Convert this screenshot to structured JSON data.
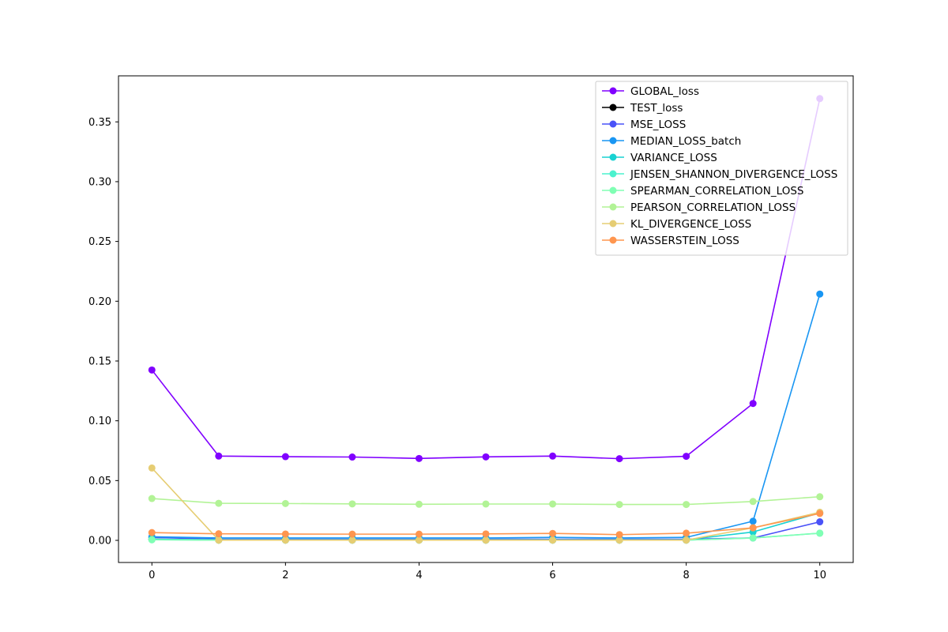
{
  "chart_data": {
    "type": "line",
    "title": "",
    "xlabel": "",
    "ylabel": "",
    "xlim": [
      -0.5,
      10.5
    ],
    "ylim": [
      -0.0185,
      0.3885
    ],
    "xticks": [
      0,
      2,
      4,
      6,
      8,
      10
    ],
    "xtick_labels": [
      "0",
      "2",
      "4",
      "6",
      "8",
      "10"
    ],
    "yticks": [
      0.0,
      0.05,
      0.1,
      0.15,
      0.2,
      0.25,
      0.3,
      0.35
    ],
    "ytick_labels": [
      "0.00",
      "0.05",
      "0.10",
      "0.15",
      "0.20",
      "0.25",
      "0.30",
      "0.35"
    ],
    "grid": false,
    "legend_position": "top-right",
    "x": [
      0,
      1,
      2,
      3,
      4,
      5,
      6,
      7,
      8,
      9,
      10
    ],
    "series": [
      {
        "name": "GLOBAL_loss",
        "color": "#8000ff",
        "values": [
          0.1425,
          0.0705,
          0.07,
          0.0697,
          0.0685,
          0.0698,
          0.0705,
          0.0683,
          0.0703,
          0.1145,
          0.3695
        ]
      },
      {
        "name": "TEST_loss",
        "color": "#000000",
        "values": [
          0.001,
          0.0002,
          0.0002,
          0.0002,
          0.0002,
          0.0002,
          0.0002,
          0.0002,
          0.0002,
          null,
          null
        ]
      },
      {
        "name": "MSE_LOSS",
        "color": "#4a52f8",
        "values": [
          0.0025,
          0.001,
          0.001,
          0.001,
          0.001,
          0.001,
          0.001,
          0.001,
          0.001,
          0.002,
          0.0155
        ]
      },
      {
        "name": "MEDIAN_LOSS_batch",
        "color": "#1996f3",
        "values": [
          0.003,
          0.002,
          0.002,
          0.002,
          0.002,
          0.002,
          0.0025,
          0.002,
          0.0025,
          0.016,
          0.206
        ]
      },
      {
        "name": "VARIANCE_LOSS",
        "color": "#19d2d2",
        "values": [
          0.001,
          0.0005,
          0.0005,
          0.0005,
          0.0005,
          0.0005,
          0.0005,
          0.0005,
          0.0005,
          0.007,
          0.023
        ]
      },
      {
        "name": "JENSEN_SHANNON_DIVERGENCE_LOSS",
        "color": "#4cf2ce",
        "values": [
          0.0005,
          0.0002,
          0.0002,
          0.0002,
          0.0002,
          0.0002,
          0.0002,
          0.0002,
          0.0002,
          0.002,
          0.006
        ]
      },
      {
        "name": "SPEARMAN_CORRELATION_LOSS",
        "color": "#80ffb4",
        "values": [
          0.0005,
          0.0002,
          0.0002,
          0.0002,
          0.0002,
          0.0002,
          0.0002,
          0.0002,
          0.0002,
          0.002,
          0.006
        ]
      },
      {
        "name": "PEARSON_CORRELATION_LOSS",
        "color": "#b2f396",
        "values": [
          0.035,
          0.031,
          0.0308,
          0.0305,
          0.0302,
          0.0304,
          0.0304,
          0.03,
          0.03,
          0.0325,
          0.0365
        ]
      },
      {
        "name": "KL_DIVERGENCE_LOSS",
        "color": "#e6cd73",
        "values": [
          0.0605,
          0.0002,
          0.0002,
          0.0002,
          0.0002,
          0.0002,
          0.0002,
          0.0002,
          0.0002,
          0.0105,
          0.0235
        ]
      },
      {
        "name": "WASSERSTEIN_LOSS",
        "color": "#ff964f",
        "values": [
          0.0065,
          0.0055,
          0.0053,
          0.0052,
          0.0052,
          0.0054,
          0.0058,
          0.0048,
          0.006,
          0.0105,
          0.0225
        ]
      }
    ]
  }
}
